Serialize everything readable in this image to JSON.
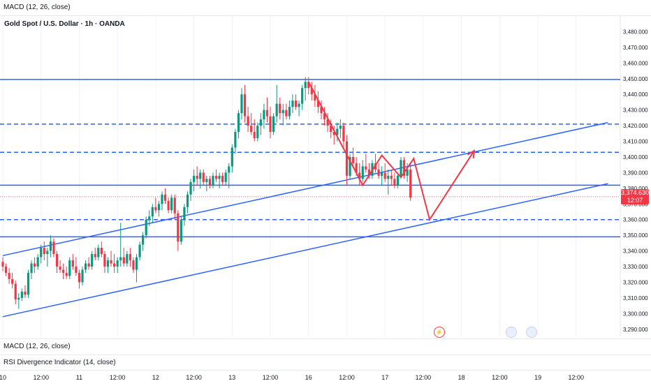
{
  "indicators": {
    "top": "MACD (12, 26, close)",
    "macd": "MACD (12, 26, close)",
    "rsi": "RSI Divergence Indicator (14, close)"
  },
  "last_price": {
    "value": "3,374.630",
    "countdown": "12:07"
  },
  "colors": {
    "up": "#089981",
    "down": "#f23645",
    "line": "#2962ff",
    "projection": "#f23645"
  },
  "chart_data": {
    "type": "candlestick",
    "title": "Gold Spot / U.S. Dollar · 1h · OANDA",
    "ylim": [
      3285,
      3490
    ],
    "y_ticks": [
      3290,
      3300,
      3310,
      3320,
      3330,
      3340,
      3350,
      3360,
      3370,
      3380,
      3390,
      3400,
      3410,
      3420,
      3430,
      3440,
      3450,
      3460,
      3470,
      3480
    ],
    "y_tick_labels": [
      "3,290.000",
      "3,300.000",
      "3,310.000",
      "3,320.000",
      "3,330.000",
      "3,340.000",
      "3,350.000",
      "3,360.000",
      "3,370.000",
      "3,380.000",
      "3,390.000",
      "3,400.000",
      "3,410.000",
      "3,420.000",
      "3,430.000",
      "3,440.000",
      "3,450.000",
      "3,460.000",
      "3,470.000",
      "3,480.000"
    ],
    "x_labels": [
      {
        "t": 0,
        "label": "10"
      },
      {
        "t": 12,
        "label": "12:00"
      },
      {
        "t": 24,
        "label": "11"
      },
      {
        "t": 36,
        "label": "12:00"
      },
      {
        "t": 48,
        "label": "12"
      },
      {
        "t": 60,
        "label": "12:00"
      },
      {
        "t": 72,
        "label": "13"
      },
      {
        "t": 84,
        "label": "12:00"
      },
      {
        "t": 96,
        "label": "16"
      },
      {
        "t": 108,
        "label": "12:00"
      },
      {
        "t": 120,
        "label": "17"
      },
      {
        "t": 132,
        "label": "12:00"
      },
      {
        "t": 144,
        "label": "18"
      },
      {
        "t": 156,
        "label": "12:00"
      },
      {
        "t": 168,
        "label": "19"
      },
      {
        "t": 180,
        "label": "12:00"
      }
    ],
    "candles": [
      [
        3333,
        3336,
        3327,
        3330
      ],
      [
        3330,
        3332,
        3324,
        3326
      ],
      [
        3326,
        3329,
        3319,
        3322
      ],
      [
        3322,
        3326,
        3316,
        3319
      ],
      [
        3319,
        3321,
        3306,
        3309
      ],
      [
        3309,
        3313,
        3303,
        3310
      ],
      [
        3310,
        3316,
        3308,
        3314
      ],
      [
        3314,
        3318,
        3310,
        3312
      ],
      [
        3312,
        3328,
        3310,
        3326
      ],
      [
        3326,
        3334,
        3322,
        3332
      ],
      [
        3332,
        3336,
        3326,
        3330
      ],
      [
        3330,
        3338,
        3328,
        3336
      ],
      [
        3336,
        3344,
        3332,
        3342
      ],
      [
        3342,
        3346,
        3334,
        3338
      ],
      [
        3338,
        3342,
        3330,
        3340
      ],
      [
        3340,
        3350,
        3336,
        3346
      ],
      [
        3346,
        3348,
        3336,
        3338
      ],
      [
        3338,
        3340,
        3326,
        3330
      ],
      [
        3330,
        3334,
        3326,
        3328
      ],
      [
        3328,
        3332,
        3322,
        3326
      ],
      [
        3326,
        3330,
        3322,
        3324
      ],
      [
        3324,
        3336,
        3322,
        3334
      ],
      [
        3334,
        3338,
        3328,
        3330
      ],
      [
        3330,
        3336,
        3324,
        3326
      ],
      [
        3326,
        3328,
        3316,
        3320
      ],
      [
        3320,
        3330,
        3318,
        3328
      ],
      [
        3328,
        3334,
        3326,
        3332
      ],
      [
        3332,
        3336,
        3328,
        3330
      ],
      [
        3330,
        3340,
        3328,
        3338
      ],
      [
        3338,
        3342,
        3334,
        3336
      ],
      [
        3336,
        3344,
        3334,
        3342
      ],
      [
        3342,
        3346,
        3336,
        3338
      ],
      [
        3338,
        3340,
        3326,
        3330
      ],
      [
        3330,
        3336,
        3326,
        3334
      ],
      [
        3334,
        3340,
        3330,
        3332
      ],
      [
        3332,
        3338,
        3326,
        3330
      ],
      [
        3330,
        3336,
        3326,
        3334
      ],
      [
        3334,
        3358,
        3330,
        3336
      ],
      [
        3336,
        3342,
        3330,
        3332
      ],
      [
        3332,
        3340,
        3330,
        3338
      ],
      [
        3338,
        3342,
        3330,
        3334
      ],
      [
        3334,
        3336,
        3326,
        3328
      ],
      [
        3328,
        3338,
        3320,
        3336
      ],
      [
        3336,
        3346,
        3334,
        3344
      ],
      [
        3344,
        3352,
        3340,
        3350
      ],
      [
        3350,
        3362,
        3348,
        3360
      ],
      [
        3360,
        3366,
        3356,
        3362
      ],
      [
        3362,
        3370,
        3358,
        3368
      ],
      [
        3368,
        3374,
        3364,
        3366
      ],
      [
        3366,
        3372,
        3362,
        3370
      ],
      [
        3370,
        3378,
        3366,
        3376
      ],
      [
        3376,
        3380,
        3370,
        3372
      ],
      [
        3372,
        3374,
        3364,
        3366
      ],
      [
        3366,
        3376,
        3364,
        3374
      ],
      [
        3374,
        3376,
        3360,
        3364
      ],
      [
        3364,
        3366,
        3340,
        3346
      ],
      [
        3346,
        3362,
        3344,
        3360
      ],
      [
        3360,
        3370,
        3356,
        3368
      ],
      [
        3368,
        3378,
        3364,
        3376
      ],
      [
        3376,
        3386,
        3372,
        3384
      ],
      [
        3384,
        3392,
        3378,
        3388
      ],
      [
        3388,
        3394,
        3382,
        3386
      ],
      [
        3386,
        3392,
        3380,
        3390
      ],
      [
        3390,
        3392,
        3382,
        3384
      ],
      [
        3384,
        3388,
        3378,
        3386
      ],
      [
        3386,
        3388,
        3380,
        3382
      ],
      [
        3382,
        3390,
        3380,
        3388
      ],
      [
        3388,
        3392,
        3384,
        3386
      ],
      [
        3386,
        3390,
        3380,
        3388
      ],
      [
        3388,
        3390,
        3382,
        3384
      ],
      [
        3384,
        3392,
        3382,
        3390
      ],
      [
        3390,
        3396,
        3380,
        3394
      ],
      [
        3394,
        3408,
        3390,
        3406
      ],
      [
        3406,
        3418,
        3402,
        3416
      ],
      [
        3416,
        3430,
        3412,
        3428
      ],
      [
        3428,
        3444,
        3424,
        3440
      ],
      [
        3440,
        3446,
        3422,
        3426
      ],
      [
        3426,
        3432,
        3416,
        3420
      ],
      [
        3420,
        3428,
        3414,
        3416
      ],
      [
        3416,
        3424,
        3410,
        3412
      ],
      [
        3412,
        3422,
        3410,
        3420
      ],
      [
        3420,
        3428,
        3414,
        3424
      ],
      [
        3424,
        3434,
        3418,
        3430
      ],
      [
        3430,
        3438,
        3422,
        3426
      ],
      [
        3426,
        3432,
        3412,
        3416
      ],
      [
        3416,
        3428,
        3414,
        3426
      ],
      [
        3426,
        3446,
        3422,
        3434
      ],
      [
        3434,
        3438,
        3424,
        3428
      ],
      [
        3428,
        3434,
        3420,
        3430
      ],
      [
        3430,
        3434,
        3424,
        3426
      ],
      [
        3426,
        3436,
        3424,
        3432
      ],
      [
        3432,
        3440,
        3428,
        3436
      ],
      [
        3436,
        3440,
        3430,
        3432
      ],
      [
        3432,
        3436,
        3426,
        3434
      ],
      [
        3434,
        3446,
        3430,
        3444
      ],
      [
        3444,
        3451,
        3436,
        3448
      ],
      [
        3448,
        3451,
        3440,
        3444
      ],
      [
        3444,
        3448,
        3436,
        3440
      ],
      [
        3440,
        3446,
        3432,
        3436
      ],
      [
        3436,
        3442,
        3428,
        3432
      ],
      [
        3432,
        3436,
        3424,
        3428
      ],
      [
        3428,
        3432,
        3420,
        3424
      ],
      [
        3424,
        3428,
        3416,
        3420
      ],
      [
        3420,
        3424,
        3412,
        3416
      ],
      [
        3416,
        3420,
        3408,
        3414
      ],
      [
        3414,
        3422,
        3410,
        3418
      ],
      [
        3418,
        3424,
        3412,
        3420
      ],
      [
        3420,
        3422,
        3406,
        3410
      ],
      [
        3410,
        3414,
        3382,
        3388
      ],
      [
        3388,
        3402,
        3386,
        3400
      ],
      [
        3400,
        3406,
        3394,
        3396
      ],
      [
        3396,
        3400,
        3388,
        3390
      ],
      [
        3390,
        3396,
        3382,
        3386
      ],
      [
        3386,
        3398,
        3384,
        3394
      ],
      [
        3394,
        3402,
        3390,
        3392
      ],
      [
        3392,
        3396,
        3386,
        3388
      ],
      [
        3388,
        3398,
        3386,
        3396
      ],
      [
        3396,
        3402,
        3390,
        3392
      ],
      [
        3392,
        3396,
        3386,
        3388
      ],
      [
        3388,
        3394,
        3382,
        3390
      ],
      [
        3390,
        3396,
        3384,
        3386
      ],
      [
        3386,
        3392,
        3376,
        3388
      ],
      [
        3388,
        3392,
        3382,
        3386
      ],
      [
        3386,
        3390,
        3380,
        3382
      ],
      [
        3382,
        3390,
        3380,
        3388
      ],
      [
        3388,
        3400,
        3386,
        3398
      ],
      [
        3398,
        3400,
        3386,
        3388
      ],
      [
        3388,
        3396,
        3384,
        3392
      ],
      [
        3392,
        3396,
        3372,
        3374
      ]
    ],
    "horizontal_levels": [
      {
        "value": 3449.5,
        "style": "solid"
      },
      {
        "value": 3421,
        "style": "dashed"
      },
      {
        "value": 3403,
        "style": "dashed"
      },
      {
        "value": 3382,
        "style": "solid"
      },
      {
        "value": 3360,
        "style": "dashed"
      },
      {
        "value": 3349,
        "style": "solid"
      }
    ],
    "trend_lines": [
      {
        "p1": {
          "t": 0,
          "v": 3337
        },
        "p2": {
          "t": 190,
          "v": 3422
        }
      },
      {
        "p1": {
          "t": 0,
          "v": 3298
        },
        "p2": {
          "t": 190,
          "v": 3383
        }
      }
    ],
    "projection_path": [
      {
        "t": 96,
        "v": 3448
      },
      {
        "t": 113,
        "v": 3382
      },
      {
        "t": 119,
        "v": 3401
      },
      {
        "t": 125,
        "v": 3387
      },
      {
        "t": 129,
        "v": 3399
      },
      {
        "t": 134,
        "v": 3360
      },
      {
        "t": 148,
        "v": 3404
      }
    ],
    "last_price_value": 3374.63
  }
}
